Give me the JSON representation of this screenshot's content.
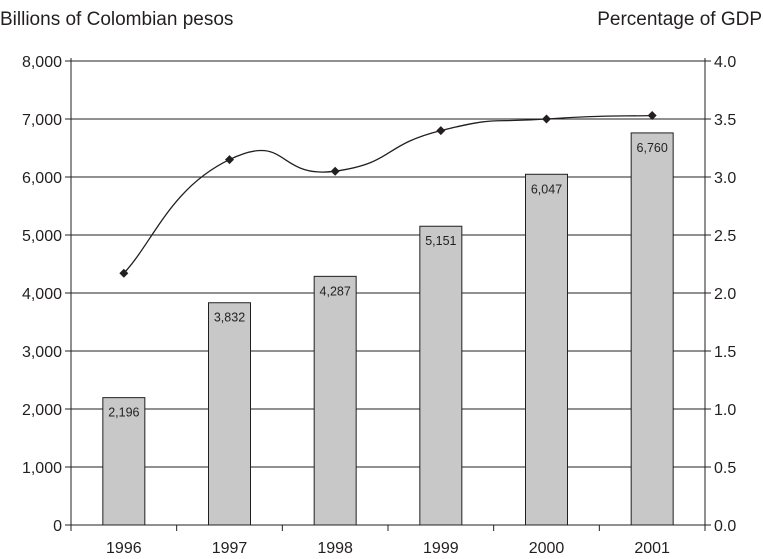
{
  "chart_data": {
    "type": "bar",
    "y_axis_title": "Billions of Colombian pesos",
    "y2_axis_title": "Percentage of GDP",
    "categories": [
      "1996",
      "1997",
      "1998",
      "1999",
      "2000",
      "2001"
    ],
    "series": [
      {
        "type": "bar",
        "axis": "left",
        "values": [
          2196,
          3832,
          4287,
          5151,
          6047,
          6760
        ],
        "labels": [
          "2,196",
          "3,832",
          "4,287",
          "5,151",
          "6,047",
          "6,760"
        ],
        "color": "#c8c8c8"
      },
      {
        "type": "line",
        "axis": "right",
        "values": [
          2.17,
          3.15,
          3.05,
          3.4,
          3.5,
          3.53
        ],
        "color": "#231f20",
        "marker": "diamond"
      }
    ],
    "y_left": {
      "min": 0,
      "max": 8000,
      "step": 1000,
      "tick_labels": [
        "0",
        "1,000",
        "2,000",
        "3,000",
        "4,000",
        "5,000",
        "6,000",
        "7,000",
        "8,000"
      ]
    },
    "y_right": {
      "min": 0,
      "max": 4.0,
      "step": 0.5,
      "tick_labels": [
        "0.0",
        "0.5",
        "1.0",
        "1.5",
        "2.0",
        "2.5",
        "3.0",
        "3.5",
        "4.0"
      ]
    },
    "grid": true,
    "legend": "none"
  }
}
